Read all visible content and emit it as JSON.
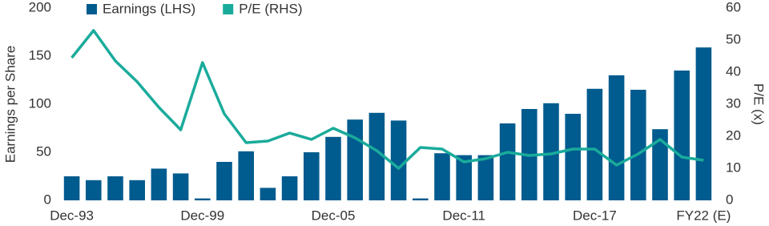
{
  "chart_data": {
    "type": "bar",
    "categories": [
      "Dec-93",
      null,
      null,
      null,
      null,
      null,
      "Dec-99",
      null,
      null,
      null,
      null,
      null,
      "Dec-05",
      null,
      null,
      null,
      null,
      null,
      "Dec-11",
      null,
      null,
      null,
      null,
      null,
      "Dec-17",
      null,
      null,
      null,
      null,
      "FY22 (E)"
    ],
    "series": [
      {
        "name": "Earnings (LHS)",
        "type": "bar",
        "color": "#005b8e",
        "values": [
          25,
          21,
          25,
          21,
          33,
          28,
          2,
          40,
          51,
          13,
          25,
          50,
          66,
          84,
          91,
          83,
          2,
          49,
          47,
          47,
          80,
          95,
          101,
          90,
          116,
          130,
          115,
          74,
          135,
          159
        ]
      },
      {
        "name": "P/E (RHS)",
        "type": "line",
        "axis": "y2",
        "color": "#1aab9b",
        "values": [
          44.5,
          53,
          43.5,
          37,
          29,
          22,
          43,
          27,
          18,
          18.5,
          21,
          19,
          22.5,
          19.5,
          15.5,
          10,
          16.5,
          16,
          12,
          13,
          15,
          14,
          14.5,
          16,
          16,
          11,
          14.5,
          19,
          13.5,
          12.5
        ]
      }
    ],
    "ylabel": "Earnings per Share",
    "y2label": "P/E (x)",
    "ylim": [
      0,
      200
    ],
    "yticks": [
      0,
      50,
      100,
      150,
      200
    ],
    "y2lim": [
      0,
      60
    ],
    "y2ticks": [
      0,
      10,
      20,
      30,
      40,
      50,
      60
    ],
    "legend": "top"
  }
}
